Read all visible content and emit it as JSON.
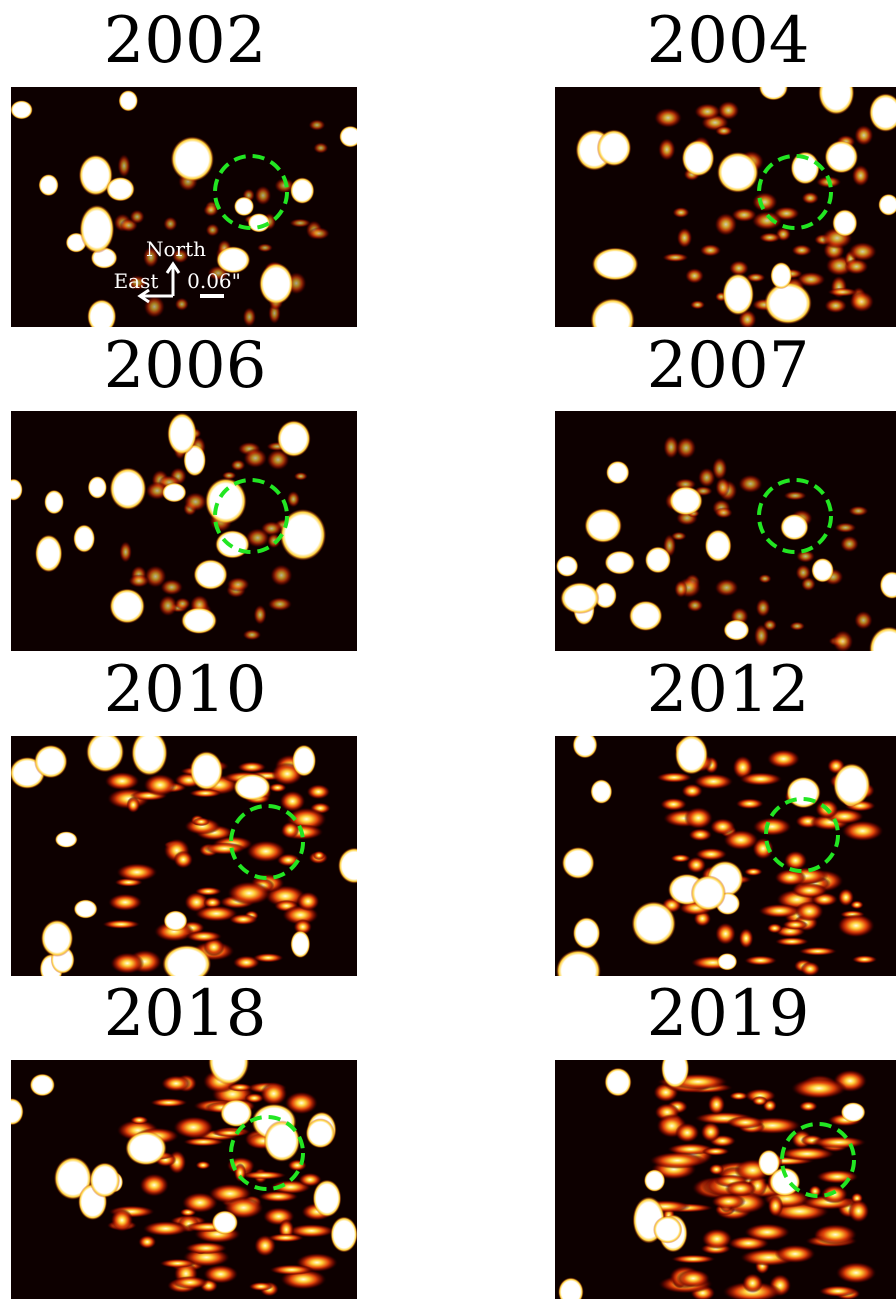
{
  "panels": [
    {
      "title": "2002"
    },
    {
      "title": "2004"
    },
    {
      "title": "2006"
    },
    {
      "title": "2007"
    },
    {
      "title": "2010"
    },
    {
      "title": "2012"
    },
    {
      "title": "2018"
    },
    {
      "title": "2019"
    }
  ],
  "annotations": {
    "north": "North",
    "east": "East",
    "scale": "0.06\""
  }
}
